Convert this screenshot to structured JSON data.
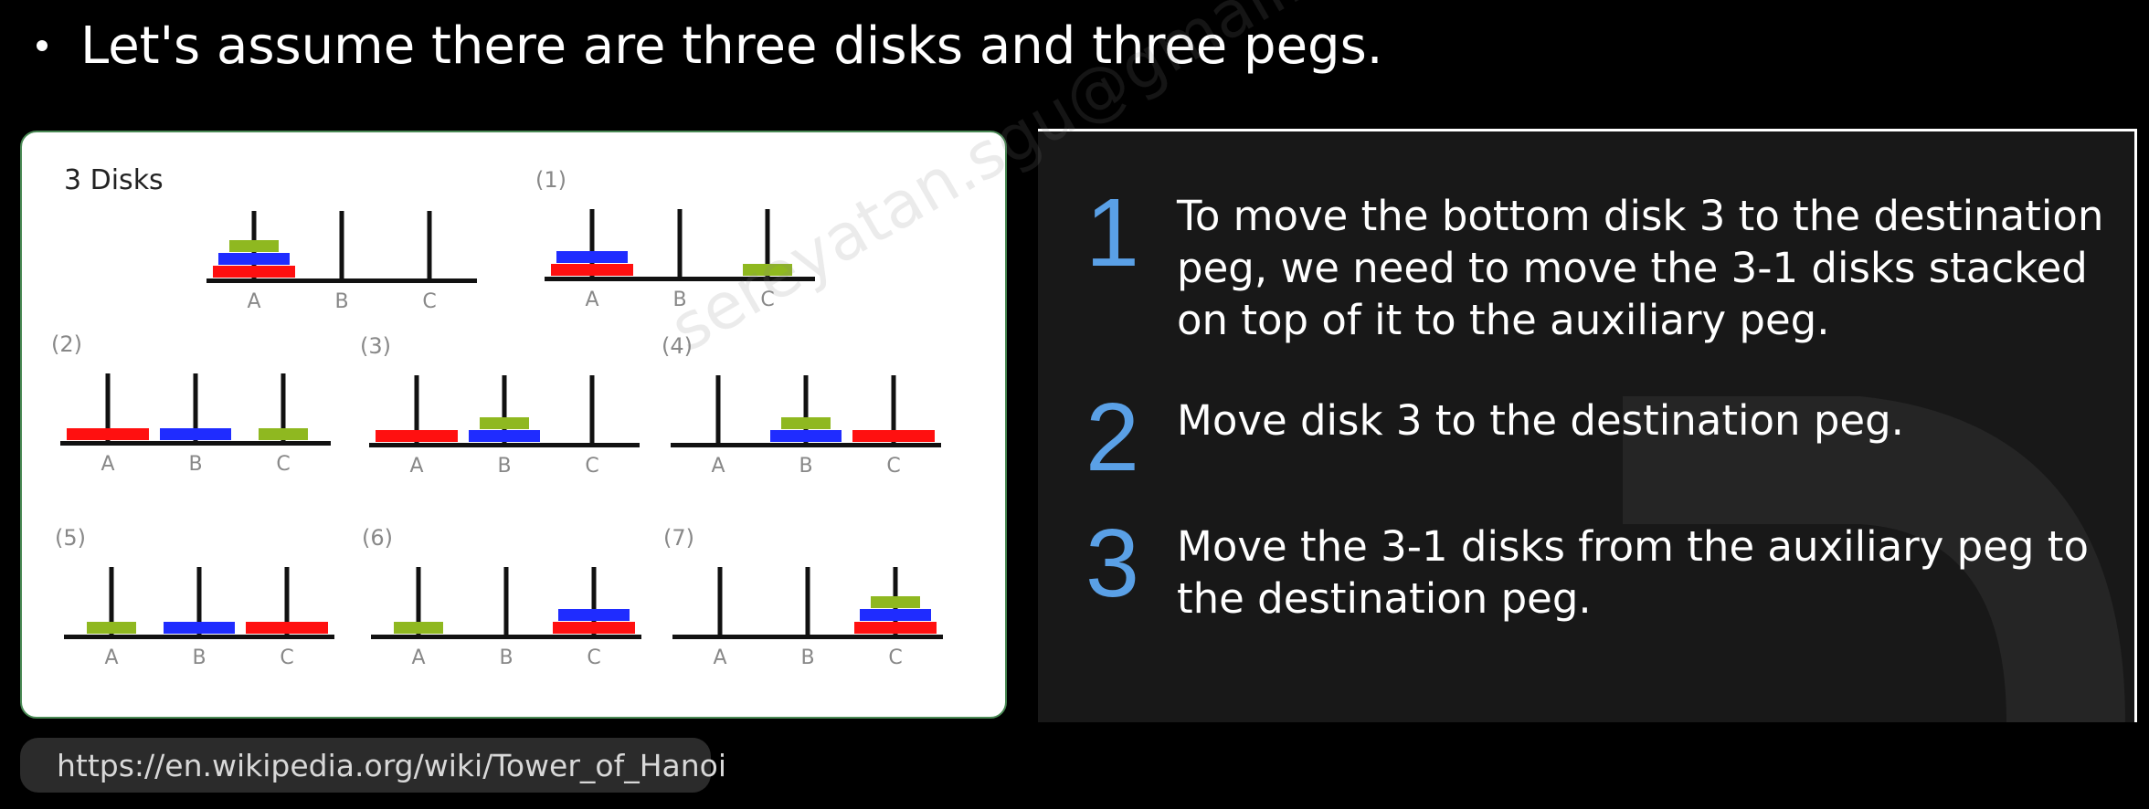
{
  "slide": {
    "bullet": "Let's assume there are three disks and three pegs.",
    "url": "https://en.wikipedia.org/wiki/Tower_of_Hanoi",
    "watermark": "sereyatan.sgu@gmail.com"
  },
  "diagram": {
    "title": "3 Disks",
    "peg_labels": [
      "A",
      "B",
      "C"
    ],
    "steps": [
      "(1)",
      "(2)",
      "(3)",
      "(4)",
      "(5)",
      "(6)",
      "(7)"
    ],
    "colors": {
      "small": "#8fb820",
      "medium": "#1f2cff",
      "large": "#ff1010"
    }
  },
  "steps": [
    {
      "num": "1",
      "text": "To move the bottom disk 3 to the destination peg, we need to move the 3-1 disks stacked on top of it to the auxiliary peg."
    },
    {
      "num": "2",
      "text": "Move disk 3 to the destination peg."
    },
    {
      "num": "3",
      "text": "Move the 3-1 disks from the auxiliary peg to the destination peg."
    }
  ]
}
